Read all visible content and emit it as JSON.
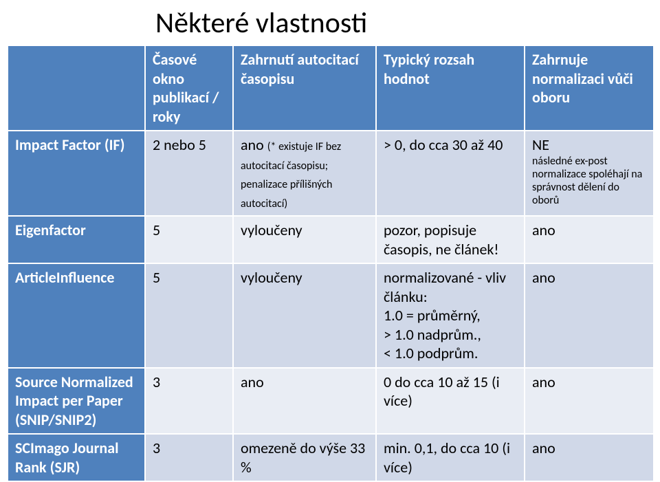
{
  "title": "Některé vlastnosti",
  "colors": {
    "header_bg": "#4f81bd",
    "metric_bg": "#4f81bd",
    "band_a": "#d0d8e8",
    "band_b": "#e9edf4",
    "header_fg": "#ffffff",
    "body_fg": "#000000",
    "border": "#ffffff"
  },
  "columns": [
    "",
    "Časové okno publikací / roky",
    "Zahrnutí autocitací časopisu",
    "Typický rozsah hodnot",
    "Zahrnuje normalizaci vůči oboru"
  ],
  "rows": [
    {
      "metric": "Impact Factor (IF)",
      "window": "2 nebo 5",
      "autocite": "ano",
      "autocite_sub": "(* existuje IF bez autocitací časopisu; penalizace přílišných autocitací)",
      "range": "> 0, do cca 30 až 40",
      "norm": "NE",
      "norm_sub": "následné ex-post normalizace spoléhají na správnost dělení do oborů"
    },
    {
      "metric": "Eigenfactor",
      "window": "5",
      "autocite": "vyloučeny",
      "range": "pozor, popisuje časopis, ne článek!",
      "norm": "ano"
    },
    {
      "metric": "ArticleInfluence",
      "window": "5",
      "autocite": "vyloučeny",
      "range": "normalizované - vliv článku:\n1.0 = průměrný,\n> 1.0 nadprům.,\n< 1.0 podprům.",
      "norm": "ano"
    },
    {
      "metric": "Source Normalized Impact per Paper (SNIP/SNIP2)",
      "window": "3",
      "autocite": "ano",
      "range": "0 do cca 10 až 15 (i více)",
      "norm": "ano"
    },
    {
      "metric": "SCImago Journal Rank (SJR)",
      "window": "3",
      "autocite": "omezeně do výše 33 %",
      "range": "min. 0,1, do cca 10 (i více)",
      "norm": "ano"
    }
  ]
}
